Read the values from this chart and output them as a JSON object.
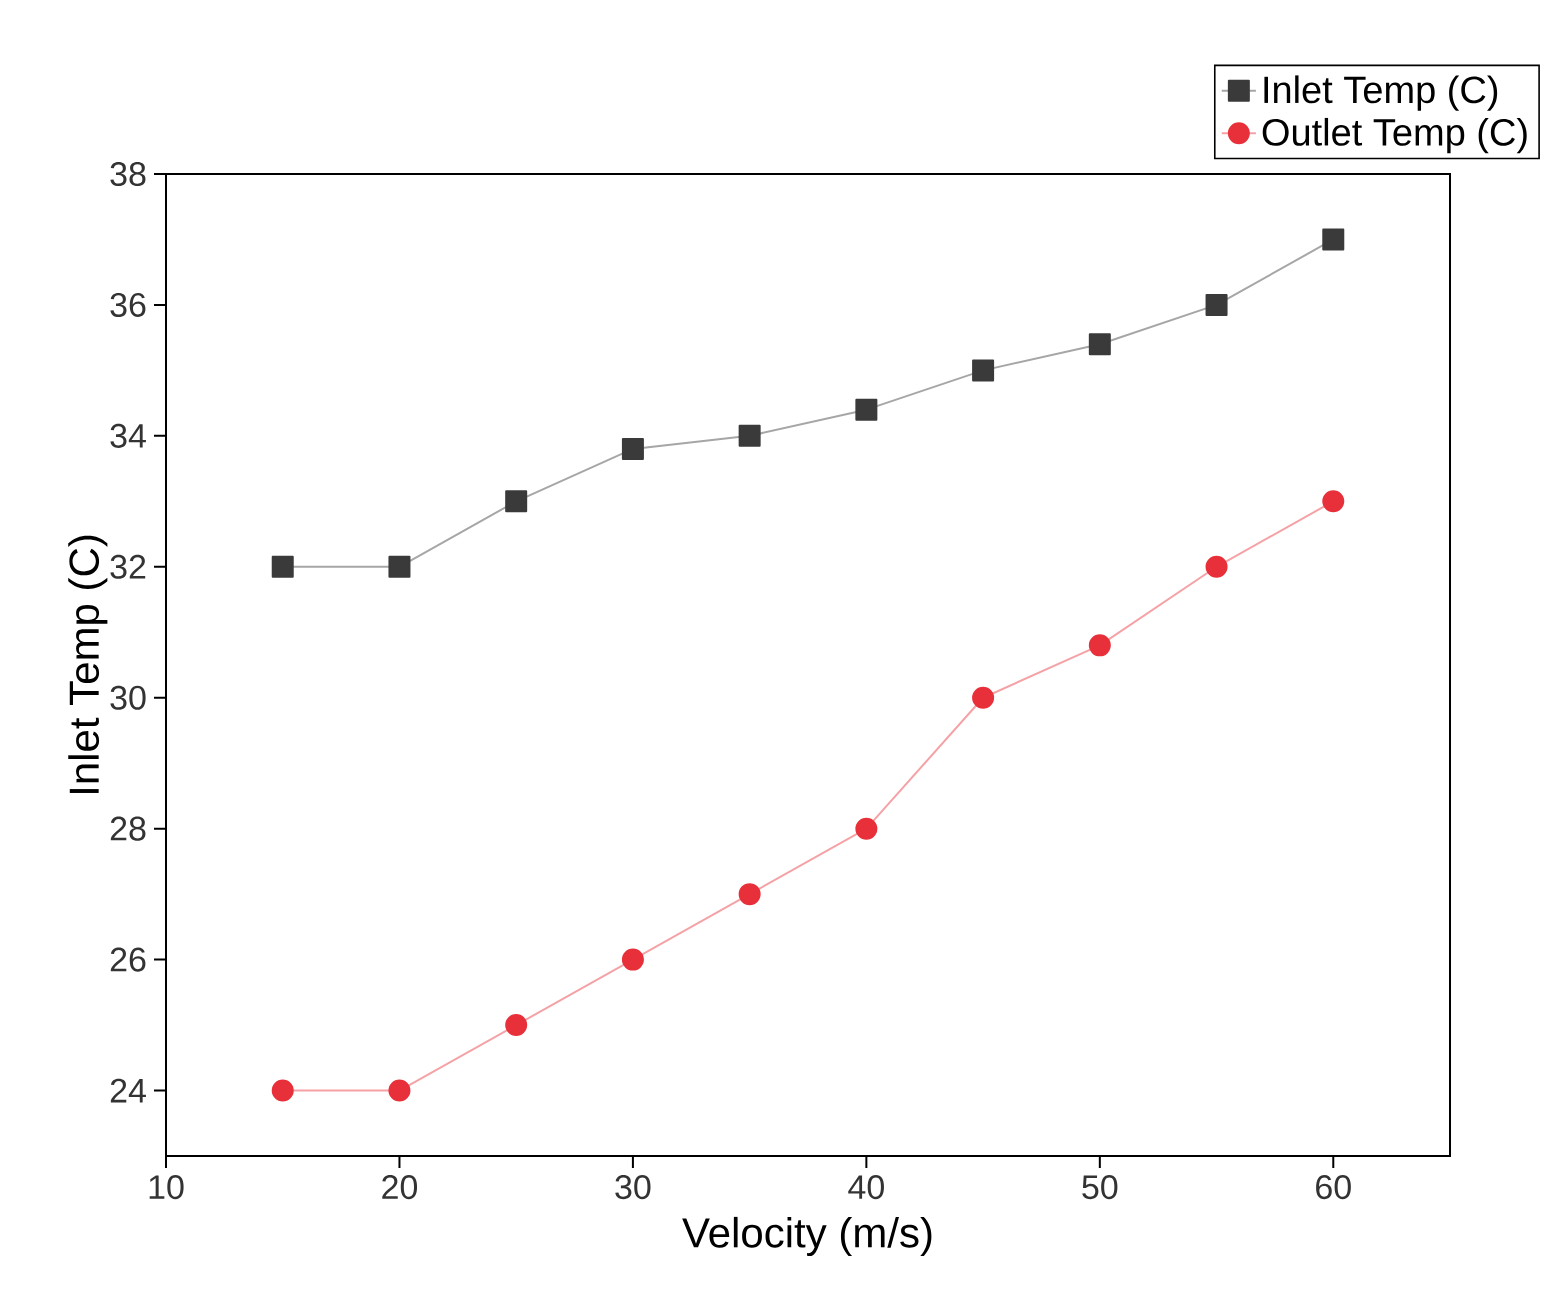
{
  "chart_data": {
    "type": "line",
    "xlabel": "Velocity (m/s)",
    "ylabel": "Inlet Temp (C)",
    "x": [
      15,
      20,
      25,
      30,
      35,
      40,
      45,
      50,
      55,
      60
    ],
    "series": [
      {
        "name": "Inlet Temp (C)",
        "color": "#3a3a3a",
        "marker": "square",
        "values": [
          32,
          32,
          33,
          33.8,
          34,
          34.4,
          35,
          35.4,
          36,
          37
        ]
      },
      {
        "name": "Outlet Temp (C)",
        "color": "#e8303a",
        "marker": "circle",
        "values": [
          24,
          24,
          25,
          26,
          27,
          28,
          30,
          30.8,
          32,
          33
        ]
      }
    ],
    "xlim": [
      10,
      65
    ],
    "ylim": [
      23,
      38
    ],
    "xticks": [
      10,
      20,
      30,
      40,
      50,
      60
    ],
    "yticks": [
      24,
      26,
      28,
      30,
      32,
      34,
      36,
      38
    ],
    "grid": false,
    "legend": "top right",
    "line_style": "solid"
  }
}
